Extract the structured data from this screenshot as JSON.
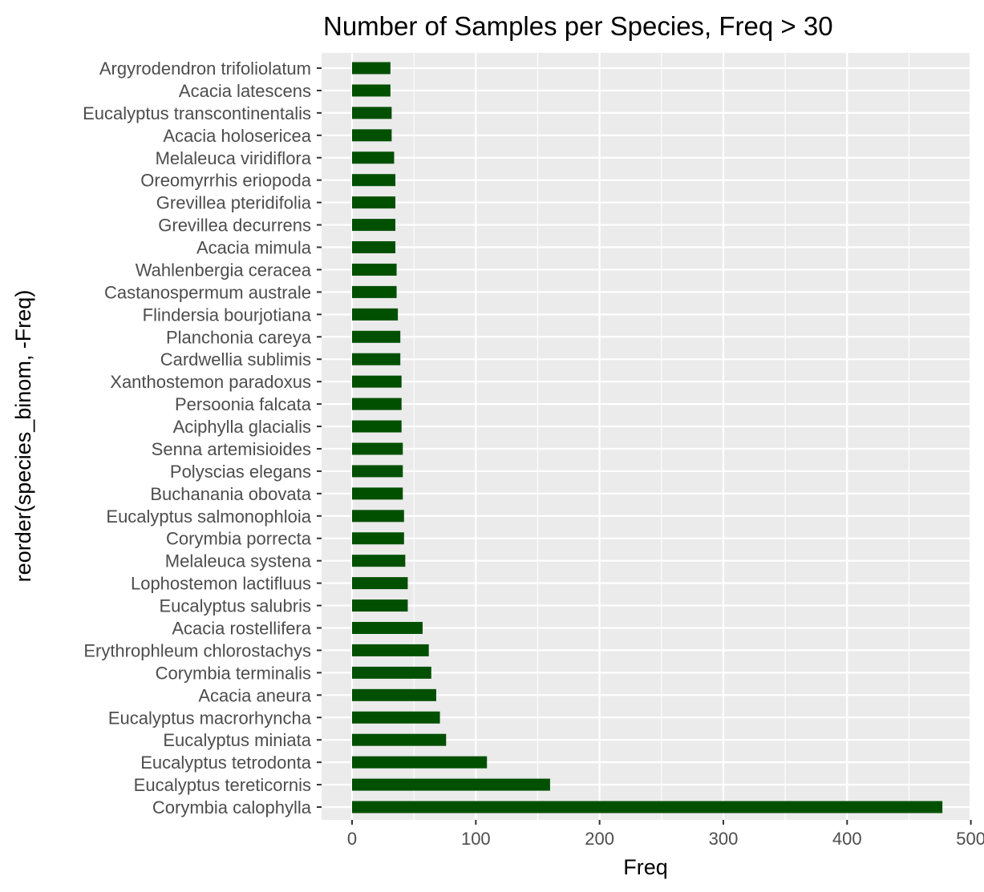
{
  "chart_data": {
    "type": "bar",
    "orientation": "horizontal",
    "title": "Number of Samples per Species, Freq > 30",
    "xlabel": "Freq",
    "ylabel": "reorder(species_binom, -Freq)",
    "xlim": [
      0,
      500
    ],
    "xticks": [
      0,
      100,
      200,
      300,
      400,
      500
    ],
    "grid": true,
    "bar_color": "#005000",
    "panel_background": "#ebebeb",
    "grid_color": "#ffffff",
    "categories": [
      "Argyrodendron trifoliolatum",
      "Acacia latescens",
      "Eucalyptus transcontinentalis",
      "Acacia holosericea",
      "Melaleuca viridiflora",
      "Oreomyrrhis eriopoda",
      "Grevillea pteridifolia",
      "Grevillea decurrens",
      "Acacia mimula",
      "Wahlenbergia ceracea",
      "Castanospermum australe",
      "Flindersia bourjotiana",
      "Planchonia careya",
      "Cardwellia sublimis",
      "Xanthostemon paradoxus",
      "Persoonia falcata",
      "Aciphylla glacialis",
      "Senna artemisioides",
      "Polyscias elegans",
      "Buchanania obovata",
      "Eucalyptus salmonophloia",
      "Corymbia porrecta",
      "Melaleuca systena",
      "Lophostemon lactifluus",
      "Eucalyptus salubris",
      "Acacia rostellifera",
      "Erythrophleum chlorostachys",
      "Corymbia terminalis",
      "Acacia aneura",
      "Eucalyptus macrorhyncha",
      "Eucalyptus miniata",
      "Eucalyptus tetrodonta",
      "Eucalyptus tereticornis",
      "Corymbia calophylla"
    ],
    "values": [
      31,
      31,
      32,
      32,
      34,
      35,
      35,
      35,
      35,
      36,
      36,
      37,
      39,
      39,
      40,
      40,
      40,
      41,
      41,
      41,
      42,
      42,
      43,
      45,
      45,
      57,
      62,
      64,
      68,
      71,
      76,
      109,
      160,
      477
    ]
  }
}
